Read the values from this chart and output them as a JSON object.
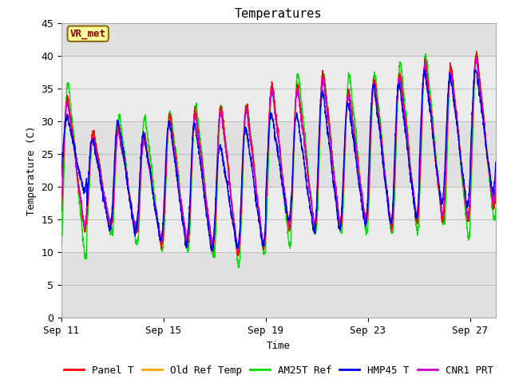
{
  "title": "Temperatures",
  "xlabel": "Time",
  "ylabel": "Temperature (C)",
  "ylim": [
    0,
    45
  ],
  "xlim_days": [
    0,
    17
  ],
  "x_ticks_days": [
    0,
    4,
    8,
    12,
    16
  ],
  "x_tick_labels": [
    "Sep 11",
    "Sep 15",
    "Sep 19",
    "Sep 23",
    "Sep 27"
  ],
  "annotation_text": "VR_met",
  "annotation_bg": "#ffff99",
  "annotation_border": "#8B6914",
  "annotation_text_color": "#8B0000",
  "bg_band_color": "#e0e0e0",
  "series_colors": {
    "Panel T": "#ff0000",
    "Old Ref Temp": "#ffa500",
    "AM25T Ref": "#00dd00",
    "HMP45 T": "#0000ee",
    "CNR1 PRT": "#cc00cc"
  },
  "legend_entries": [
    "Panel T",
    "Old Ref Temp",
    "AM25T Ref",
    "HMP45 T",
    "CNR1 PRT"
  ],
  "grid_color": "#bbbbbb",
  "plot_bg": "#ebebeb",
  "fig_bg": "#ffffff"
}
